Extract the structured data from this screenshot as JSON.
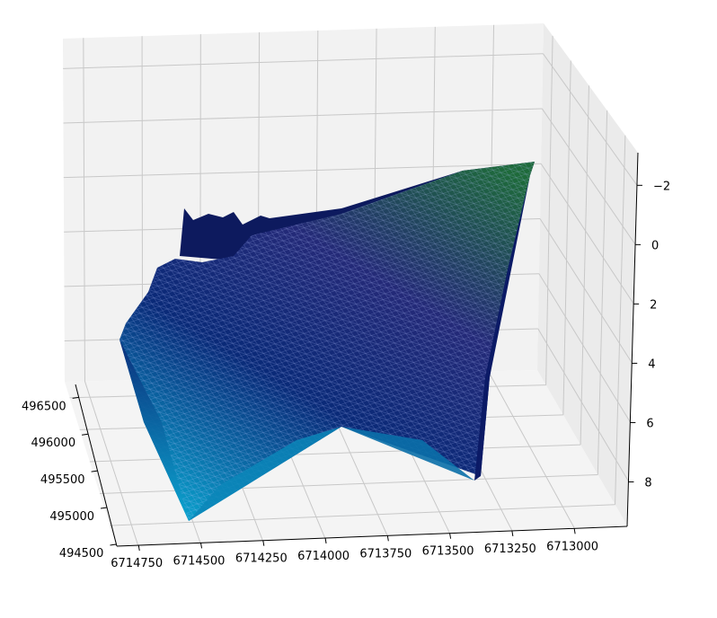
{
  "chart_data": {
    "type": "surface3d",
    "title": "",
    "colormap": "ocean",
    "colors": {
      "pane": "#f2f2f2",
      "pane_side": "#e8e8e8",
      "grid": "#c8c8c8",
      "surface_deep": "#0a8fbf",
      "surface_mid": "#1a1f70",
      "surface_shallow": "#1f6a3c",
      "mesh": "#ffffff"
    },
    "x_axis": {
      "label": "",
      "ticks": [
        "494500",
        "495000",
        "495500",
        "496000",
        "496500"
      ]
    },
    "y_axis": {
      "label": "",
      "ticks": [
        "6714750",
        "6714500",
        "6714250",
        "6714000",
        "6713750",
        "6713500",
        "6713250",
        "6713000"
      ]
    },
    "z_axis": {
      "label": "",
      "inverted": true,
      "ticks": [
        "−2",
        "0",
        "2",
        "4",
        "6",
        "8"
      ],
      "range": [
        -2,
        8
      ]
    },
    "grid": true
  }
}
